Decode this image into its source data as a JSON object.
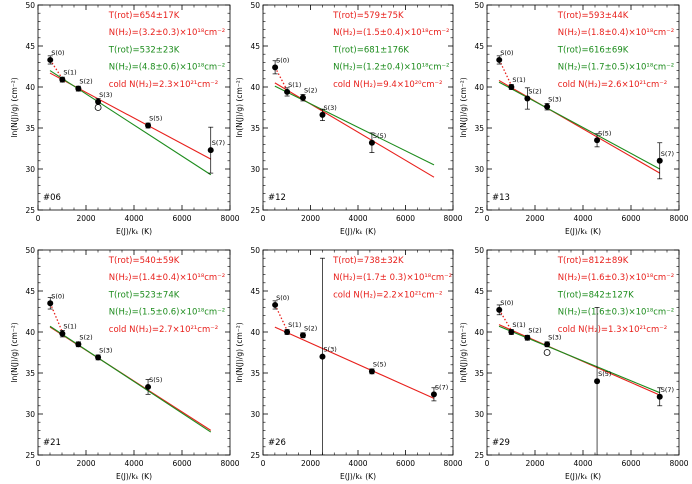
{
  "colors": {
    "red": "#e8201c",
    "green": "#1d8c1d",
    "black": "#000000"
  },
  "chart_data": [
    {
      "type": "scatter",
      "panel_label": "#06",
      "xlabel": "E(J)/kₖ (K)",
      "ylabel": "ln(N(J)/g) (cm⁻²)",
      "xlim": [
        0,
        8000
      ],
      "ylim": [
        25,
        50
      ],
      "xticks": [
        "0",
        "2000",
        "4000",
        "6000",
        "8000"
      ],
      "yticks": [
        "25",
        "30",
        "35",
        "40",
        "45",
        "50"
      ],
      "annotations": [
        {
          "text": "T(rot)=654±17K",
          "color": "red"
        },
        {
          "text": "N(H₂)=(3.2±0.3)×10¹⁸cm⁻²",
          "color": "red"
        },
        {
          "text": "T(rot)=532±23K",
          "color": "green"
        },
        {
          "text": "N(H₂)=(4.8±0.6)×10¹⁸cm⁻²",
          "color": "green"
        },
        {
          "text": "cold N(H₂)=2.3×10²¹cm⁻²",
          "color": "red"
        }
      ],
      "points": [
        {
          "label": "S(0)",
          "x": 510,
          "y": 43.3,
          "err": 0.5
        },
        {
          "label": "S(1)",
          "x": 1015,
          "y": 40.9,
          "err": 0.3
        },
        {
          "label": "S(2)",
          "x": 1682,
          "y": 39.8,
          "err": 0.3
        },
        {
          "label": "S(3)",
          "x": 2504,
          "y": 38.2,
          "err": 0.4
        },
        {
          "label": "S(5)",
          "x": 4586,
          "y": 35.3,
          "err": 0.3
        },
        {
          "label": "S(7)",
          "x": 7197,
          "y": 32.3,
          "err": 2.8
        }
      ],
      "open_points": [
        {
          "x": 2504,
          "y": 37.5
        }
      ],
      "lines": [
        {
          "color": "red",
          "x": [
            500,
            7200
          ],
          "y": [
            41.7,
            31.2
          ]
        },
        {
          "color": "green",
          "x": [
            500,
            7200
          ],
          "y": [
            42.0,
            29.3
          ]
        }
      ],
      "dotted": {
        "x": [
          510,
          1015
        ],
        "y": [
          43.3,
          41.0
        ]
      }
    },
    {
      "type": "scatter",
      "panel_label": "#12",
      "xlabel": "E(J)/kₖ (K)",
      "ylabel": "ln(N(J)/g) (cm⁻²)",
      "xlim": [
        0,
        8000
      ],
      "ylim": [
        25,
        50
      ],
      "xticks": [
        "0",
        "2000",
        "4000",
        "6000",
        "8000"
      ],
      "yticks": [
        "25",
        "30",
        "35",
        "40",
        "45",
        "50"
      ],
      "annotations": [
        {
          "text": "T(rot)=579±75K",
          "color": "red"
        },
        {
          "text": "N(H₂)=(1.5±0.4)×10¹⁸cm⁻²",
          "color": "red"
        },
        {
          "text": "T(rot)=681±176K",
          "color": "green"
        },
        {
          "text": "N(H₂)=(1.2±0.4)×10¹⁸cm⁻²",
          "color": "green"
        },
        {
          "text": "cold N(H₂)=9.4×10²⁰cm⁻²",
          "color": "red"
        }
      ],
      "points": [
        {
          "label": "S(0)",
          "x": 510,
          "y": 42.4,
          "err": 0.8
        },
        {
          "label": "S(1)",
          "x": 1015,
          "y": 39.4,
          "err": 0.5
        },
        {
          "label": "S(2)",
          "x": 1682,
          "y": 38.7,
          "err": 0.4
        },
        {
          "label": "S(3)",
          "x": 2504,
          "y": 36.6,
          "err": 0.7
        },
        {
          "label": "S(5)",
          "x": 4586,
          "y": 33.2,
          "err": 1.2
        }
      ],
      "open_points": [],
      "lines": [
        {
          "color": "red",
          "x": [
            500,
            7200
          ],
          "y": [
            40.5,
            29.0
          ]
        },
        {
          "color": "green",
          "x": [
            500,
            7200
          ],
          "y": [
            40.1,
            30.5
          ]
        }
      ],
      "dotted": {
        "x": [
          510,
          1015
        ],
        "y": [
          42.4,
          39.6
        ]
      }
    },
    {
      "type": "scatter",
      "panel_label": "#13",
      "xlabel": "E(J)/kₖ (K)",
      "ylabel": "ln(N(J)/g) (cm⁻²)",
      "xlim": [
        0,
        8000
      ],
      "ylim": [
        25,
        50
      ],
      "xticks": [
        "0",
        "2000",
        "4000",
        "6000",
        "8000"
      ],
      "yticks": [
        "25",
        "30",
        "35",
        "40",
        "45",
        "50"
      ],
      "annotations": [
        {
          "text": "T(rot)=593±44K",
          "color": "red"
        },
        {
          "text": "N(H₂)=(1.8±0.4)×10¹⁸cm⁻²",
          "color": "red"
        },
        {
          "text": "T(rot)=616±69K",
          "color": "green"
        },
        {
          "text": "N(H₂)=(1.7±0.5)×10¹⁸cm⁻²",
          "color": "green"
        },
        {
          "text": "cold N(H₂)=2.6×10²¹cm⁻²",
          "color": "red"
        }
      ],
      "points": [
        {
          "label": "S(0)",
          "x": 510,
          "y": 43.3,
          "err": 0.5
        },
        {
          "label": "S(1)",
          "x": 1015,
          "y": 40.0,
          "err": 0.3
        },
        {
          "label": "S(2)",
          "x": 1682,
          "y": 38.6,
          "err": 1.3
        },
        {
          "label": "S(3)",
          "x": 2504,
          "y": 37.6,
          "err": 0.4
        },
        {
          "label": "S(5)",
          "x": 4586,
          "y": 33.5,
          "err": 0.8
        },
        {
          "label": "S(7)",
          "x": 7197,
          "y": 31.0,
          "err": 2.2
        }
      ],
      "open_points": [],
      "lines": [
        {
          "color": "red",
          "x": [
            500,
            7200
          ],
          "y": [
            40.8,
            29.5
          ]
        },
        {
          "color": "green",
          "x": [
            500,
            7200
          ],
          "y": [
            40.6,
            30.0
          ]
        }
      ],
      "dotted": {
        "x": [
          510,
          1015
        ],
        "y": [
          43.3,
          40.2
        ]
      }
    },
    {
      "type": "scatter",
      "panel_label": "#21",
      "xlabel": "E(J)/kₖ (K)",
      "ylabel": "ln(N(J)/g) (cm⁻²)",
      "xlim": [
        0,
        8000
      ],
      "ylim": [
        25,
        50
      ],
      "xticks": [
        "0",
        "2000",
        "4000",
        "6000",
        "8000"
      ],
      "yticks": [
        "25",
        "30",
        "35",
        "40",
        "45",
        "50"
      ],
      "annotations": [
        {
          "text": "T(rot)=540±59K",
          "color": "red"
        },
        {
          "text": "N(H₂)=(1.4±0.4)×10¹⁸cm⁻²",
          "color": "red"
        },
        {
          "text": "T(rot)=523±74K",
          "color": "green"
        },
        {
          "text": "N(H₂)=(1.5±0.6)×10¹⁸cm⁻²",
          "color": "green"
        },
        {
          "text": "cold N(H₂)=2.7×10²¹cm⁻²",
          "color": "red"
        }
      ],
      "points": [
        {
          "label": "S(0)",
          "x": 510,
          "y": 43.5,
          "err": 0.7
        },
        {
          "label": "S(1)",
          "x": 1015,
          "y": 39.8,
          "err": 0.4
        },
        {
          "label": "S(2)",
          "x": 1682,
          "y": 38.5,
          "err": 0.3
        },
        {
          "label": "S(3)",
          "x": 2504,
          "y": 36.9,
          "err": 0.3
        },
        {
          "label": "S(5)",
          "x": 4586,
          "y": 33.3,
          "err": 0.9
        }
      ],
      "open_points": [],
      "lines": [
        {
          "color": "red",
          "x": [
            500,
            7200
          ],
          "y": [
            40.6,
            28.0
          ]
        },
        {
          "color": "green",
          "x": [
            500,
            7200
          ],
          "y": [
            40.7,
            27.8
          ]
        }
      ],
      "dotted": {
        "x": [
          510,
          1015
        ],
        "y": [
          43.5,
          40.0
        ]
      }
    },
    {
      "type": "scatter",
      "panel_label": "#26",
      "xlabel": "E(J)/kₖ (K)",
      "ylabel": "ln(N(J)/g) (cm⁻²)",
      "xlim": [
        0,
        8000
      ],
      "ylim": [
        25,
        50
      ],
      "xticks": [
        "0",
        "2000",
        "4000",
        "6000",
        "8000"
      ],
      "yticks": [
        "25",
        "30",
        "35",
        "40",
        "45",
        "50"
      ],
      "annotations": [
        {
          "text": "T(rot)=738±32K",
          "color": "red"
        },
        {
          "text": "N(H₂)=(1.7± 0.3)×10¹⁸cm⁻²",
          "color": "red"
        },
        {
          "text": "cold N(H₂)=2.2×10²¹cm⁻²",
          "color": "red"
        }
      ],
      "points": [
        {
          "label": "S(0)",
          "x": 510,
          "y": 43.3,
          "err": 0.5
        },
        {
          "label": "S(1)",
          "x": 1015,
          "y": 40.0,
          "err": 0.3
        },
        {
          "label": "S(2)",
          "x": 1682,
          "y": 39.6,
          "err": 0.3
        },
        {
          "label": "S(3)",
          "x": 2504,
          "y": 37.0,
          "err": 12.0
        },
        {
          "label": "S(5)",
          "x": 4586,
          "y": 35.2,
          "err": 0.3
        },
        {
          "label": "S(7)",
          "x": 7197,
          "y": 32.4,
          "err": 0.8
        }
      ],
      "open_points": [],
      "lines": [
        {
          "color": "red",
          "x": [
            500,
            7200
          ],
          "y": [
            40.6,
            31.9
          ]
        }
      ],
      "dotted": {
        "x": [
          510,
          1015
        ],
        "y": [
          43.3,
          40.2
        ]
      }
    },
    {
      "type": "scatter",
      "panel_label": "#29",
      "xlabel": "E(J)/kₖ (K)",
      "ylabel": "ln(N(J)/g) (cm⁻²)",
      "xlim": [
        0,
        8000
      ],
      "ylim": [
        25,
        50
      ],
      "xticks": [
        "0",
        "2000",
        "4000",
        "6000",
        "8000"
      ],
      "yticks": [
        "25",
        "30",
        "35",
        "40",
        "45",
        "50"
      ],
      "annotations": [
        {
          "text": "T(rot)=812±89K",
          "color": "red"
        },
        {
          "text": "N(H₂)=(1.6±0.3)×10¹⁸cm⁻²",
          "color": "red"
        },
        {
          "text": "T(rot)=842±127K",
          "color": "green"
        },
        {
          "text": "N(H₂)=(1.6±0.3)×10¹⁸cm⁻²",
          "color": "green"
        },
        {
          "text": "cold N(H₂)=1.3×10²¹cm⁻²",
          "color": "red"
        }
      ],
      "points": [
        {
          "label": "S(0)",
          "x": 510,
          "y": 42.7,
          "err": 0.6
        },
        {
          "label": "S(1)",
          "x": 1015,
          "y": 40.0,
          "err": 0.3
        },
        {
          "label": "S(2)",
          "x": 1682,
          "y": 39.3,
          "err": 0.3
        },
        {
          "label": "S(3)",
          "x": 2504,
          "y": 38.5,
          "err": 0.3
        },
        {
          "label": "S(5)",
          "x": 4586,
          "y": 34.0,
          "err": 9.0
        },
        {
          "label": "S(7)",
          "x": 7197,
          "y": 32.1,
          "err": 1.1
        }
      ],
      "open_points": [
        {
          "x": 2504,
          "y": 37.5
        }
      ],
      "lines": [
        {
          "color": "red",
          "x": [
            500,
            7200
          ],
          "y": [
            40.9,
            32.3
          ]
        },
        {
          "color": "green",
          "x": [
            500,
            7200
          ],
          "y": [
            40.7,
            32.6
          ]
        }
      ],
      "dotted": {
        "x": [
          510,
          1015
        ],
        "y": [
          42.7,
          40.2
        ]
      }
    }
  ]
}
